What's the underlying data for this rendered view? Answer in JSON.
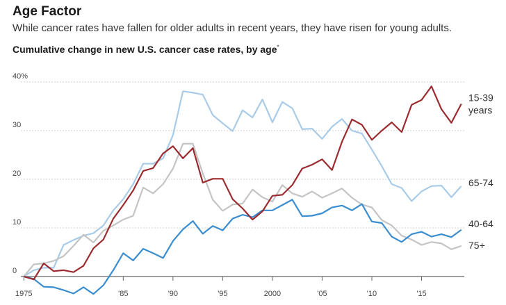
{
  "header": {
    "title": "Age Factor",
    "subtitle": "While cancer rates have fallen for older adults in recent years, they have risen for young adults.",
    "chart_title": "Cumulative change in new U.S. cancer case rates, by age",
    "chart_title_mark": "*"
  },
  "chart_data": {
    "type": "line",
    "title": "Cumulative change in new U.S. cancer case rates, by age",
    "x": [
      1975,
      1976,
      1977,
      1978,
      1979,
      1980,
      1981,
      1982,
      1983,
      1984,
      1985,
      1986,
      1987,
      1988,
      1989,
      1990,
      1991,
      1992,
      1993,
      1994,
      1995,
      1996,
      1997,
      1998,
      1999,
      2000,
      2001,
      2002,
      2003,
      2004,
      2005,
      2006,
      2007,
      2008,
      2009,
      2010,
      2011,
      2012,
      2013,
      2014,
      2015,
      2016,
      2017,
      2018,
      2019
    ],
    "xlim": [
      1974.7,
      2019.3
    ],
    "ylim": [
      -4,
      40
    ],
    "y_ticks": [
      0,
      10,
      20,
      30,
      40
    ],
    "y_tick_labels": [
      "0",
      "10",
      "20",
      "30",
      "40%"
    ],
    "x_ticks": [
      1975,
      1985,
      1990,
      1995,
      2000,
      2005,
      2010,
      2015
    ],
    "x_tick_labels": [
      "1975",
      "'85",
      "'90",
      "'95",
      "2000",
      "'05",
      "'10",
      "'15"
    ],
    "grid": true,
    "series": [
      {
        "name": "15-39 years",
        "color": "#9b2b2f",
        "values": [
          0.0,
          -0.6,
          2.7,
          1.1,
          1.3,
          0.9,
          2.2,
          5.8,
          7.6,
          11.9,
          14.7,
          17.7,
          21.7,
          22.3,
          25.3,
          26.8,
          24.3,
          26.4,
          19.3,
          20.1,
          20.1,
          15.9,
          14.0,
          11.7,
          13.4,
          16.6,
          16.8,
          18.8,
          22.2,
          23.0,
          24.1,
          21.9,
          27.7,
          32.3,
          31.2,
          28.1,
          30.0,
          31.7,
          29.7,
          35.3,
          36.3,
          39.1,
          34.4,
          31.6,
          35.5
        ]
      },
      {
        "name": "65-74",
        "color": "#a8cbe8",
        "values": [
          0.0,
          1.3,
          1.8,
          1.8,
          6.5,
          7.5,
          8.4,
          8.9,
          10.5,
          13.6,
          15.9,
          19.0,
          23.2,
          23.2,
          24.3,
          29.1,
          38.1,
          37.8,
          37.4,
          33.2,
          31.5,
          29.9,
          34.2,
          32.7,
          36.4,
          31.7,
          35.9,
          34.6,
          30.3,
          30.4,
          28.3,
          30.8,
          32.4,
          30.0,
          29.4,
          26.1,
          22.7,
          19.0,
          18.2,
          15.5,
          17.5,
          18.6,
          18.7,
          16.3,
          18.6
        ]
      },
      {
        "name": "40-64",
        "color": "#3a8dcf",
        "values": [
          0.0,
          -0.5,
          -2.1,
          -2.2,
          -2.8,
          -3.5,
          -2.2,
          -3.6,
          -1.8,
          1.3,
          4.8,
          3.3,
          5.7,
          4.8,
          3.8,
          7.3,
          9.7,
          11.4,
          8.8,
          10.4,
          9.5,
          11.9,
          12.7,
          12.2,
          13.6,
          13.6,
          14.7,
          15.8,
          12.4,
          12.5,
          13.0,
          14.2,
          14.6,
          13.6,
          14.9,
          11.3,
          11.0,
          8.2,
          7.1,
          8.7,
          9.2,
          8.2,
          8.7,
          8.1,
          9.6
        ]
      },
      {
        "name": "75+",
        "color": "#c4c4c4",
        "values": [
          0.0,
          2.5,
          2.7,
          3.2,
          4.2,
          6.3,
          8.6,
          7.0,
          9.4,
          10.5,
          11.7,
          12.5,
          18.3,
          17.1,
          19.0,
          22.2,
          27.3,
          27.3,
          21.2,
          15.8,
          13.5,
          14.8,
          15.0,
          17.9,
          16.3,
          15.4,
          18.8,
          17.1,
          16.4,
          17.5,
          16.2,
          17.1,
          18.1,
          16.2,
          14.8,
          14.2,
          11.6,
          10.5,
          8.4,
          7.6,
          6.5,
          7.1,
          6.8,
          5.6,
          6.3
        ]
      }
    ],
    "series_labels": [
      {
        "series": 0,
        "lines": [
          "15-39",
          "years"
        ]
      },
      {
        "series": 1,
        "lines": [
          "65-74"
        ]
      },
      {
        "series": 2,
        "lines": [
          "40-64"
        ]
      },
      {
        "series": 3,
        "lines": [
          "75+"
        ]
      }
    ]
  }
}
